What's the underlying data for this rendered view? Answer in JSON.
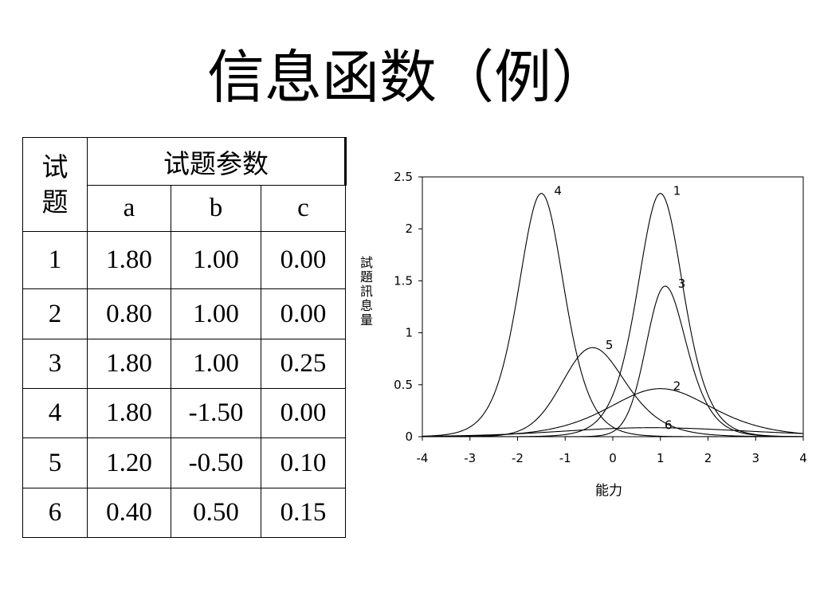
{
  "title": "信息函数（例）",
  "table": {
    "header_item": "试题",
    "header_params": "试题参数",
    "columns": [
      "a",
      "b",
      "c"
    ],
    "rows": [
      {
        "item": "1",
        "a": "1.80",
        "b": "1.00",
        "c": "0.00"
      },
      {
        "item": "2",
        "a": "0.80",
        "b": "1.00",
        "c": "0.00"
      },
      {
        "item": "3",
        "a": "1.80",
        "b": "1.00",
        "c": "0.25"
      },
      {
        "item": "4",
        "a": "1.80",
        "b": "-1.50",
        "c": "0.00"
      },
      {
        "item": "5",
        "a": "1.20",
        "b": "-0.50",
        "c": "0.10"
      },
      {
        "item": "6",
        "a": "0.40",
        "b": "0.50",
        "c": "0.15"
      }
    ]
  },
  "chart_data": {
    "type": "line",
    "xlabel": "能力",
    "ylabel": "試題訊息量",
    "xlim": [
      -4,
      4
    ],
    "ylim": [
      0,
      2.5
    ],
    "xticks": [
      "-4",
      "-3",
      "-2",
      "-1",
      "0",
      "1",
      "2",
      "3",
      "4"
    ],
    "yticks": [
      "0",
      "0.5",
      "1",
      "1.5",
      "2",
      "2.5"
    ],
    "grid": false,
    "model": "3PL item information, D = 1.7",
    "series": [
      {
        "name": "1",
        "a": 1.8,
        "b": 1.0,
        "c": 0.0
      },
      {
        "name": "2",
        "a": 0.8,
        "b": 1.0,
        "c": 0.0
      },
      {
        "name": "3",
        "a": 1.8,
        "b": 1.0,
        "c": 0.25
      },
      {
        "name": "4",
        "a": 1.8,
        "b": -1.5,
        "c": 0.0
      },
      {
        "name": "5",
        "a": 1.2,
        "b": -0.5,
        "c": 0.1
      },
      {
        "name": "6",
        "a": 0.4,
        "b": 0.5,
        "c": 0.15
      }
    ]
  }
}
